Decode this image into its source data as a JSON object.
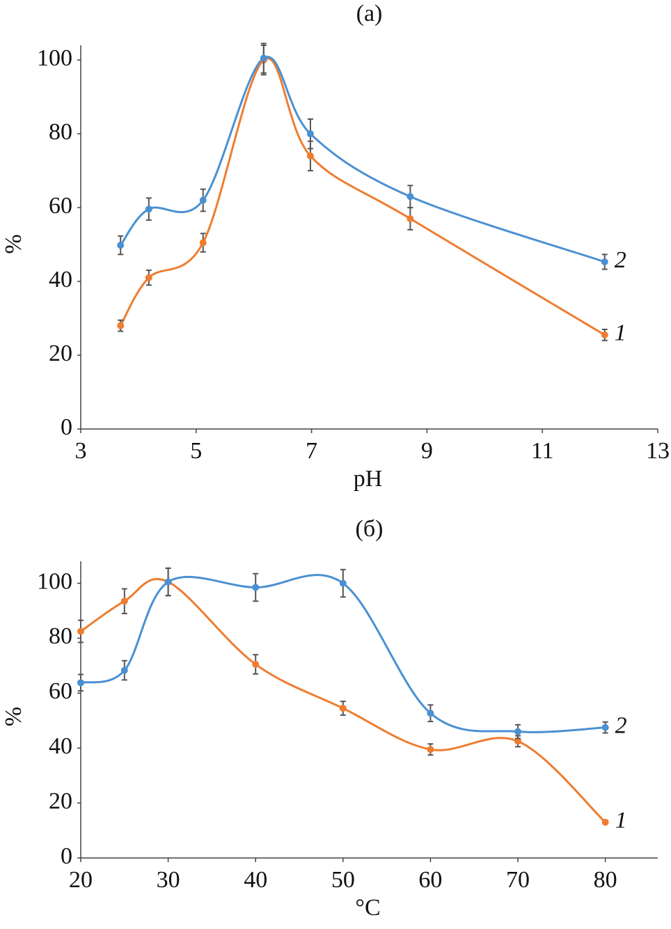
{
  "chart_data": [
    {
      "type": "line",
      "title": "(a)",
      "x_label": "pH",
      "y_label": "%",
      "xlim": [
        3,
        13
      ],
      "xticks": [
        3,
        5,
        7,
        9,
        11,
        13
      ],
      "ylim": [
        0,
        104
      ],
      "yticks": [
        0,
        20,
        40,
        60,
        80,
        100
      ],
      "smooth": true,
      "series": [
        {
          "name": "1",
          "color": "#ee7d31",
          "x": [
            3.69,
            4.18,
            5.12,
            6.17,
            6.98,
            8.71,
            12.08
          ],
          "values": [
            28,
            41,
            50.5,
            100,
            74,
            57,
            25.5
          ],
          "errors": [
            1.5,
            2,
            2.5,
            4,
            4,
            3,
            1.5
          ]
        },
        {
          "name": "2",
          "color": "#4a90d2",
          "x": [
            3.69,
            4.18,
            5.12,
            6.17,
            6.98,
            8.71,
            12.08
          ],
          "values": [
            49.8,
            59.6,
            62,
            100.5,
            80,
            63,
            45.3
          ],
          "errors": [
            2.5,
            3,
            3,
            4,
            4,
            3,
            2
          ]
        }
      ]
    },
    {
      "type": "line",
      "title": "(б)",
      "x_label": "°C",
      "y_label": "%",
      "xlim": [
        20,
        86
      ],
      "xticks": [
        20,
        30,
        40,
        50,
        60,
        70,
        80
      ],
      "ylim": [
        0,
        108
      ],
      "yticks": [
        0,
        20,
        40,
        60,
        80,
        100
      ],
      "smooth": true,
      "series": [
        {
          "name": "1",
          "color": "#ee7d31",
          "x": [
            20,
            25,
            30,
            40,
            50,
            60,
            70,
            80
          ],
          "values": [
            82.5,
            93.5,
            100.5,
            70.5,
            54.5,
            39.5,
            42.5,
            13
          ],
          "errors": [
            4,
            4.5,
            5,
            3.5,
            2.5,
            2,
            2,
            0
          ]
        },
        {
          "name": "2",
          "color": "#4a90d2",
          "x": [
            20,
            25,
            30,
            40,
            50,
            60,
            70,
            80
          ],
          "values": [
            63.8,
            68.3,
            100.5,
            98.5,
            100,
            52.7,
            46,
            47.5
          ],
          "errors": [
            3,
            3.5,
            5,
            5,
            5,
            3,
            2.5,
            2
          ]
        }
      ]
    }
  ]
}
